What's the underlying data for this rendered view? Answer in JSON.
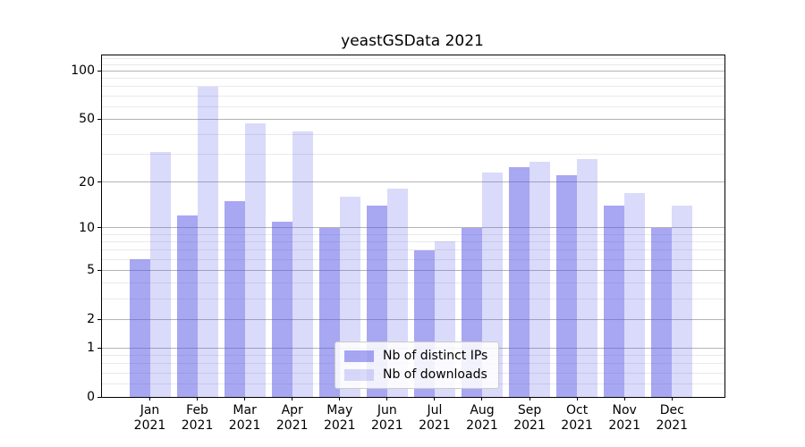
{
  "title": "yeastGSData 2021",
  "chart_data": {
    "type": "bar",
    "title": "yeastGSData 2021",
    "categories": [
      "Jan 2021",
      "Feb 2021",
      "Mar 2021",
      "Apr 2021",
      "May 2021",
      "Jun 2021",
      "Jul 2021",
      "Aug 2021",
      "Sep 2021",
      "Oct 2021",
      "Nov 2021",
      "Dec 2021"
    ],
    "series": [
      {
        "name": "Nb of distinct IPs",
        "color": "rgba(80,80,230,0.50)",
        "values": [
          6,
          12,
          15,
          11,
          10,
          14,
          7,
          10,
          25,
          22,
          14,
          10
        ]
      },
      {
        "name": "Nb of downloads",
        "color": "rgba(80,80,230,0.21)",
        "values": [
          31,
          80,
          47,
          42,
          16,
          18,
          8,
          23,
          27,
          28,
          17,
          14
        ]
      }
    ],
    "xlabel": "",
    "ylabel": "",
    "yscale": "log1p",
    "ylim": [
      0,
      125
    ],
    "yticks": [
      0,
      1,
      2,
      5,
      10,
      20,
      50,
      100
    ],
    "yticks_minor": [
      0.2,
      0.4,
      0.6,
      0.8,
      3,
      4,
      6,
      7,
      8,
      9,
      30,
      40,
      60,
      70,
      80,
      90,
      110,
      120
    ],
    "grid": true,
    "legend_position": "lower center"
  },
  "colors": {
    "bar_dark": "rgba(80,80,230,0.50)",
    "bar_light": "rgba(80,80,230,0.21)",
    "grid_major": "#b4b4b4",
    "grid_minor": "#e9e9e9",
    "spine": "#000000",
    "legend_border": "#cccccc"
  }
}
